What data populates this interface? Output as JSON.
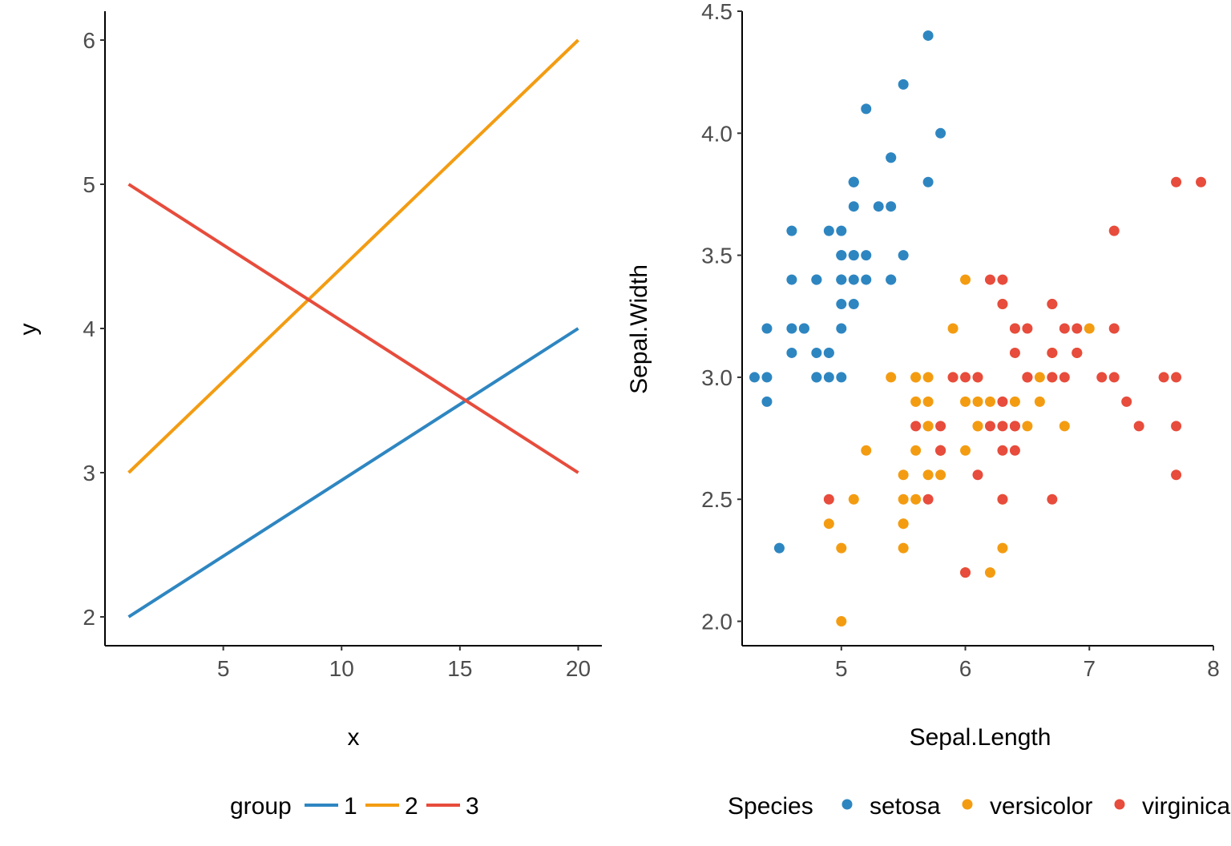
{
  "chart_data": [
    {
      "type": "line",
      "title": "",
      "xlabel": "x",
      "ylabel": "y",
      "xlim": [
        0,
        21
      ],
      "ylim": [
        1.8,
        6.2
      ],
      "xticks": [
        "5",
        "10",
        "15",
        "20"
      ],
      "yticks": [
        "2",
        "3",
        "4",
        "5",
        "6"
      ],
      "grid": false,
      "legend_position": "bottom",
      "legend_title": "group",
      "series": [
        {
          "name": "1",
          "color": "#2E86C1",
          "x": [
            1,
            20
          ],
          "y": [
            2,
            4
          ]
        },
        {
          "name": "2",
          "color": "#F39C12",
          "x": [
            1,
            20
          ],
          "y": [
            3,
            6
          ]
        },
        {
          "name": "3",
          "color": "#E74C3C",
          "x": [
            1,
            20
          ],
          "y": [
            5,
            3
          ]
        }
      ]
    },
    {
      "type": "scatter",
      "title": "",
      "xlabel": "Sepal.Length",
      "ylabel": "Sepal.Width",
      "xlim": [
        4.2,
        8.0
      ],
      "ylim": [
        1.9,
        4.5
      ],
      "xticks": [
        "5",
        "6",
        "7",
        "8"
      ],
      "yticks": [
        "2.0",
        "2.5",
        "3.0",
        "3.5",
        "4.0",
        "4.5"
      ],
      "grid": false,
      "legend_position": "bottom",
      "legend_title": "Species",
      "series": [
        {
          "name": "setosa",
          "color": "#2E86C1",
          "points": [
            [
              5.1,
              3.5
            ],
            [
              4.9,
              3.0
            ],
            [
              4.7,
              3.2
            ],
            [
              4.6,
              3.1
            ],
            [
              5.0,
              3.6
            ],
            [
              5.4,
              3.9
            ],
            [
              4.6,
              3.4
            ],
            [
              5.0,
              3.4
            ],
            [
              4.4,
              2.9
            ],
            [
              4.9,
              3.1
            ],
            [
              5.4,
              3.7
            ],
            [
              4.8,
              3.4
            ],
            [
              4.8,
              3.0
            ],
            [
              4.3,
              3.0
            ],
            [
              5.8,
              4.0
            ],
            [
              5.7,
              4.4
            ],
            [
              5.4,
              3.9
            ],
            [
              5.1,
              3.5
            ],
            [
              5.7,
              3.8
            ],
            [
              5.1,
              3.8
            ],
            [
              5.4,
              3.4
            ],
            [
              5.1,
              3.7
            ],
            [
              4.6,
              3.6
            ],
            [
              5.1,
              3.3
            ],
            [
              4.8,
              3.4
            ],
            [
              5.0,
              3.0
            ],
            [
              5.0,
              3.4
            ],
            [
              5.2,
              3.5
            ],
            [
              5.2,
              3.4
            ],
            [
              4.7,
              3.2
            ],
            [
              4.8,
              3.1
            ],
            [
              5.4,
              3.4
            ],
            [
              5.2,
              4.1
            ],
            [
              5.5,
              4.2
            ],
            [
              4.9,
              3.1
            ],
            [
              5.0,
              3.2
            ],
            [
              5.5,
              3.5
            ],
            [
              4.9,
              3.6
            ],
            [
              4.4,
              3.0
            ],
            [
              5.1,
              3.4
            ],
            [
              5.0,
              3.5
            ],
            [
              4.5,
              2.3
            ],
            [
              4.4,
              3.2
            ],
            [
              5.0,
              3.5
            ],
            [
              5.1,
              3.8
            ],
            [
              4.8,
              3.0
            ],
            [
              5.1,
              3.8
            ],
            [
              4.6,
              3.2
            ],
            [
              5.3,
              3.7
            ],
            [
              5.0,
              3.3
            ]
          ]
        },
        {
          "name": "versicolor",
          "color": "#F39C12",
          "points": [
            [
              7.0,
              3.2
            ],
            [
              6.4,
              3.2
            ],
            [
              6.9,
              3.1
            ],
            [
              5.5,
              2.3
            ],
            [
              6.5,
              2.8
            ],
            [
              5.7,
              2.8
            ],
            [
              6.3,
              3.3
            ],
            [
              4.9,
              2.4
            ],
            [
              6.6,
              2.9
            ],
            [
              5.2,
              2.7
            ],
            [
              5.0,
              2.0
            ],
            [
              5.9,
              3.0
            ],
            [
              6.0,
              2.2
            ],
            [
              6.1,
              2.9
            ],
            [
              5.6,
              2.9
            ],
            [
              6.7,
              3.1
            ],
            [
              5.6,
              3.0
            ],
            [
              5.8,
              2.7
            ],
            [
              6.2,
              2.2
            ],
            [
              5.6,
              2.5
            ],
            [
              5.9,
              3.2
            ],
            [
              6.1,
              2.8
            ],
            [
              6.3,
              2.5
            ],
            [
              6.1,
              2.8
            ],
            [
              6.4,
              2.9
            ],
            [
              6.6,
              3.0
            ],
            [
              6.8,
              2.8
            ],
            [
              6.7,
              3.0
            ],
            [
              6.0,
              2.9
            ],
            [
              5.7,
              2.6
            ],
            [
              5.5,
              2.4
            ],
            [
              5.5,
              2.4
            ],
            [
              5.8,
              2.7
            ],
            [
              6.0,
              2.7
            ],
            [
              5.4,
              3.0
            ],
            [
              6.0,
              3.4
            ],
            [
              6.7,
              3.1
            ],
            [
              6.3,
              2.3
            ],
            [
              5.6,
              3.0
            ],
            [
              5.5,
              2.5
            ],
            [
              5.5,
              2.6
            ],
            [
              6.1,
              3.0
            ],
            [
              5.8,
              2.6
            ],
            [
              5.0,
              2.3
            ],
            [
              5.6,
              2.7
            ],
            [
              5.7,
              3.0
            ],
            [
              5.7,
              2.9
            ],
            [
              6.2,
              2.9
            ],
            [
              5.1,
              2.5
            ],
            [
              5.7,
              2.8
            ]
          ]
        },
        {
          "name": "virginica",
          "color": "#E74C3C",
          "points": [
            [
              6.3,
              3.3
            ],
            [
              5.8,
              2.7
            ],
            [
              7.1,
              3.0
            ],
            [
              6.3,
              2.9
            ],
            [
              6.5,
              3.0
            ],
            [
              7.6,
              3.0
            ],
            [
              4.9,
              2.5
            ],
            [
              7.3,
              2.9
            ],
            [
              6.7,
              2.5
            ],
            [
              7.2,
              3.6
            ],
            [
              6.5,
              3.2
            ],
            [
              6.4,
              2.7
            ],
            [
              6.8,
              3.0
            ],
            [
              5.7,
              2.5
            ],
            [
              5.8,
              2.8
            ],
            [
              6.4,
              3.2
            ],
            [
              6.5,
              3.0
            ],
            [
              7.7,
              3.8
            ],
            [
              7.7,
              2.6
            ],
            [
              6.0,
              2.2
            ],
            [
              6.9,
              3.2
            ],
            [
              5.6,
              2.8
            ],
            [
              7.7,
              2.8
            ],
            [
              6.3,
              2.7
            ],
            [
              6.7,
              3.3
            ],
            [
              7.2,
              3.2
            ],
            [
              6.2,
              2.8
            ],
            [
              6.1,
              3.0
            ],
            [
              6.4,
              2.8
            ],
            [
              7.2,
              3.0
            ],
            [
              7.4,
              2.8
            ],
            [
              7.9,
              3.8
            ],
            [
              6.4,
              2.8
            ],
            [
              6.3,
              2.8
            ],
            [
              6.1,
              2.6
            ],
            [
              7.7,
              3.0
            ],
            [
              6.3,
              3.4
            ],
            [
              6.4,
              3.1
            ],
            [
              6.0,
              3.0
            ],
            [
              6.9,
              3.1
            ],
            [
              6.7,
              3.1
            ],
            [
              6.9,
              3.1
            ],
            [
              5.8,
              2.7
            ],
            [
              6.8,
              3.2
            ],
            [
              6.7,
              3.3
            ],
            [
              6.7,
              3.0
            ],
            [
              6.3,
              2.5
            ],
            [
              6.5,
              3.0
            ],
            [
              6.2,
              3.4
            ],
            [
              5.9,
              3.0
            ]
          ]
        }
      ]
    }
  ]
}
